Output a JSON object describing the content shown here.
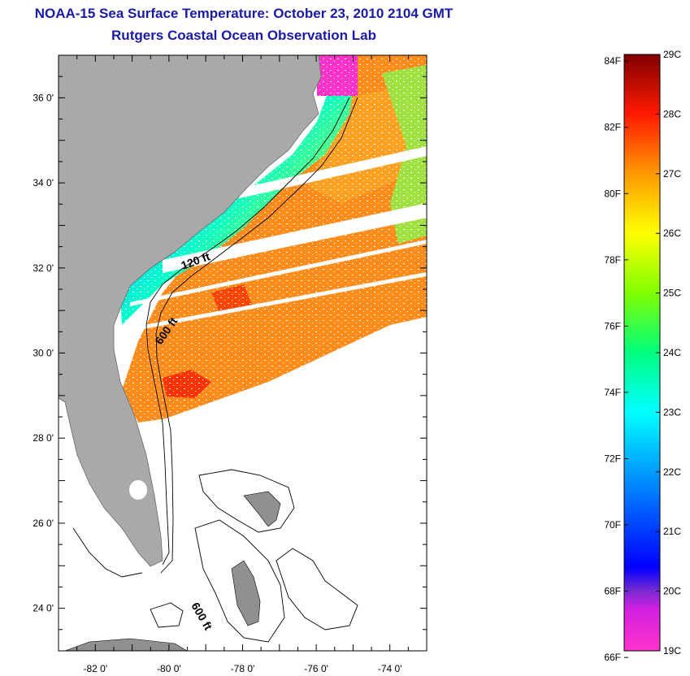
{
  "title": "NOAA-15 Sea Surface Temperature:  October 23, 2010 2104 GMT",
  "subtitle": "Rutgers Coastal Ocean Observation Lab",
  "map": {
    "lon_range": [
      -83,
      -73
    ],
    "lat_range": [
      23,
      37
    ],
    "lat_ticks": [
      {
        "value": 36,
        "label": "36 0'"
      },
      {
        "value": 34,
        "label": "34 0'"
      },
      {
        "value": 32,
        "label": "32 0'"
      },
      {
        "value": 30,
        "label": "30 0'"
      },
      {
        "value": 28,
        "label": "28 0'"
      },
      {
        "value": 26,
        "label": "26 0'"
      },
      {
        "value": 24,
        "label": "24 0'"
      }
    ],
    "lon_ticks": [
      {
        "value": -82,
        "label": "-82 0'"
      },
      {
        "value": -80,
        "label": "-80 0'"
      },
      {
        "value": -78,
        "label": "-78 0'"
      },
      {
        "value": -76,
        "label": "-76 0'"
      },
      {
        "value": -74,
        "label": "-74 0'"
      }
    ],
    "contour_labels": [
      "120 ft",
      "600 ft",
      "600 ft"
    ],
    "land_color": "#a9a9a9"
  },
  "colorbar": {
    "fahrenheit": [
      "84F",
      "82F",
      "80F",
      "78F",
      "76F",
      "74F",
      "72F",
      "70F",
      "68F",
      "66F"
    ],
    "celsius": [
      "29C",
      "28C",
      "27C",
      "26C",
      "25C",
      "24C",
      "23C",
      "22C",
      "21C",
      "20C",
      "19C"
    ],
    "range_c": [
      19,
      29
    ],
    "colors": [
      "#ff33cc",
      "#8a2be2",
      "#0000ff",
      "#0088ff",
      "#00ffff",
      "#00ff80",
      "#80ff00",
      "#ffff00",
      "#ff9900",
      "#ff0000",
      "#800000"
    ]
  }
}
